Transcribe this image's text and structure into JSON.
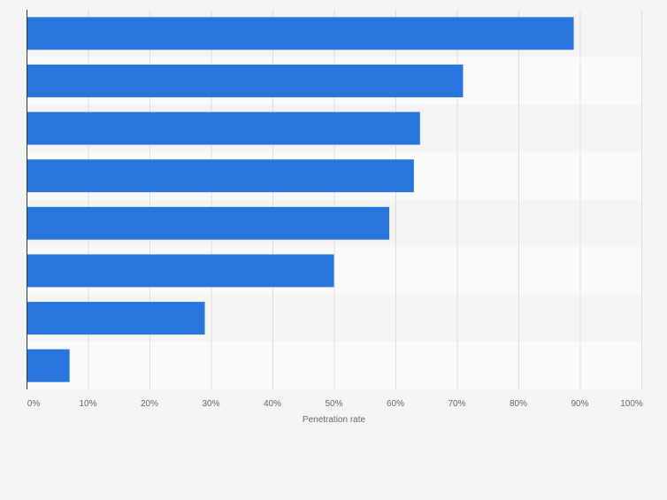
{
  "chart_data": {
    "type": "bar",
    "orientation": "horizontal",
    "title": "",
    "xlabel": "Penetration rate",
    "ylabel": "",
    "xlim": [
      0,
      100
    ],
    "x_ticks": [
      0,
      10,
      20,
      30,
      40,
      50,
      60,
      70,
      80,
      90,
      100
    ],
    "x_tick_labels": [
      "0%",
      "10%",
      "20%",
      "30%",
      "40%",
      "50%",
      "60%",
      "70%",
      "80%",
      "90%",
      "100%"
    ],
    "categories": [
      "",
      "",
      "",
      "",
      "",
      "",
      "",
      ""
    ],
    "values": [
      89,
      71,
      64,
      63,
      59,
      50,
      29,
      7
    ],
    "unit": "%",
    "grid": true,
    "legend": "none",
    "colors": {
      "bar": "#2876dd",
      "band_even": "#f4f4f4",
      "band_odd": "#fafafa",
      "page_background": "#f4f4f4",
      "gridline": "#dddddd",
      "axis": "#333333",
      "tick_text": "#666666"
    }
  }
}
